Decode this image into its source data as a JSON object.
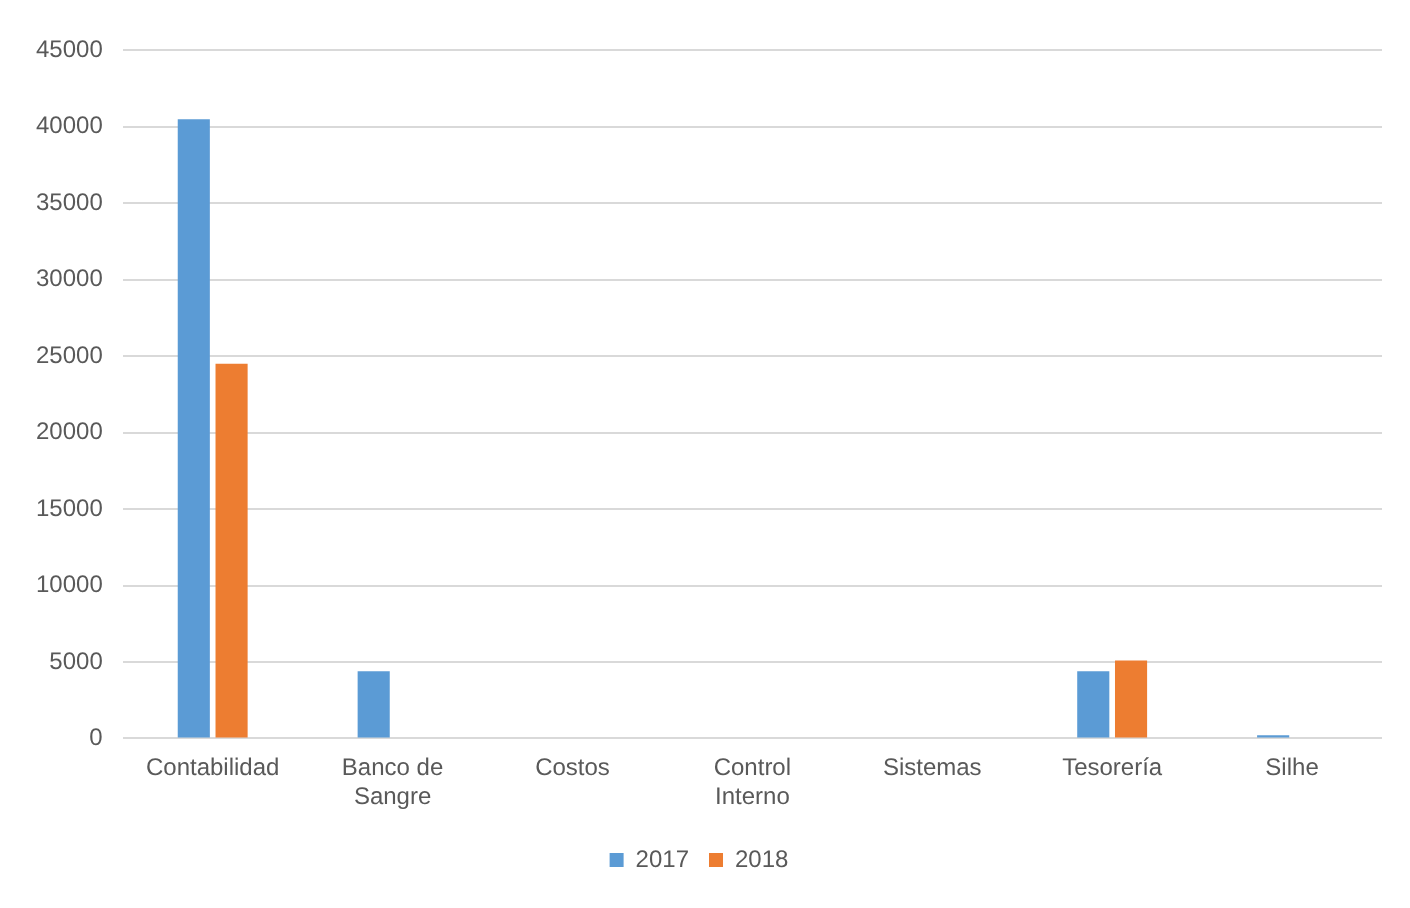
{
  "chart_data": {
    "type": "bar",
    "categories": [
      "Contabilidad",
      "Banco de Sangre",
      "Costos",
      "Control Interno",
      "Sistemas",
      "Tesorería",
      "Silhe"
    ],
    "series": [
      {
        "name": "2017",
        "color": "#5b9bd5",
        "values": [
          40500,
          4400,
          0,
          0,
          0,
          4400,
          200
        ]
      },
      {
        "name": "2018",
        "color": "#ed7d31",
        "values": [
          24500,
          0,
          0,
          0,
          0,
          5100,
          0
        ]
      }
    ],
    "ylim": [
      0,
      45000
    ],
    "yticks": [
      0,
      5000,
      10000,
      15000,
      20000,
      25000,
      30000,
      35000,
      40000,
      45000
    ],
    "grid": "y",
    "legend": "bottom"
  }
}
